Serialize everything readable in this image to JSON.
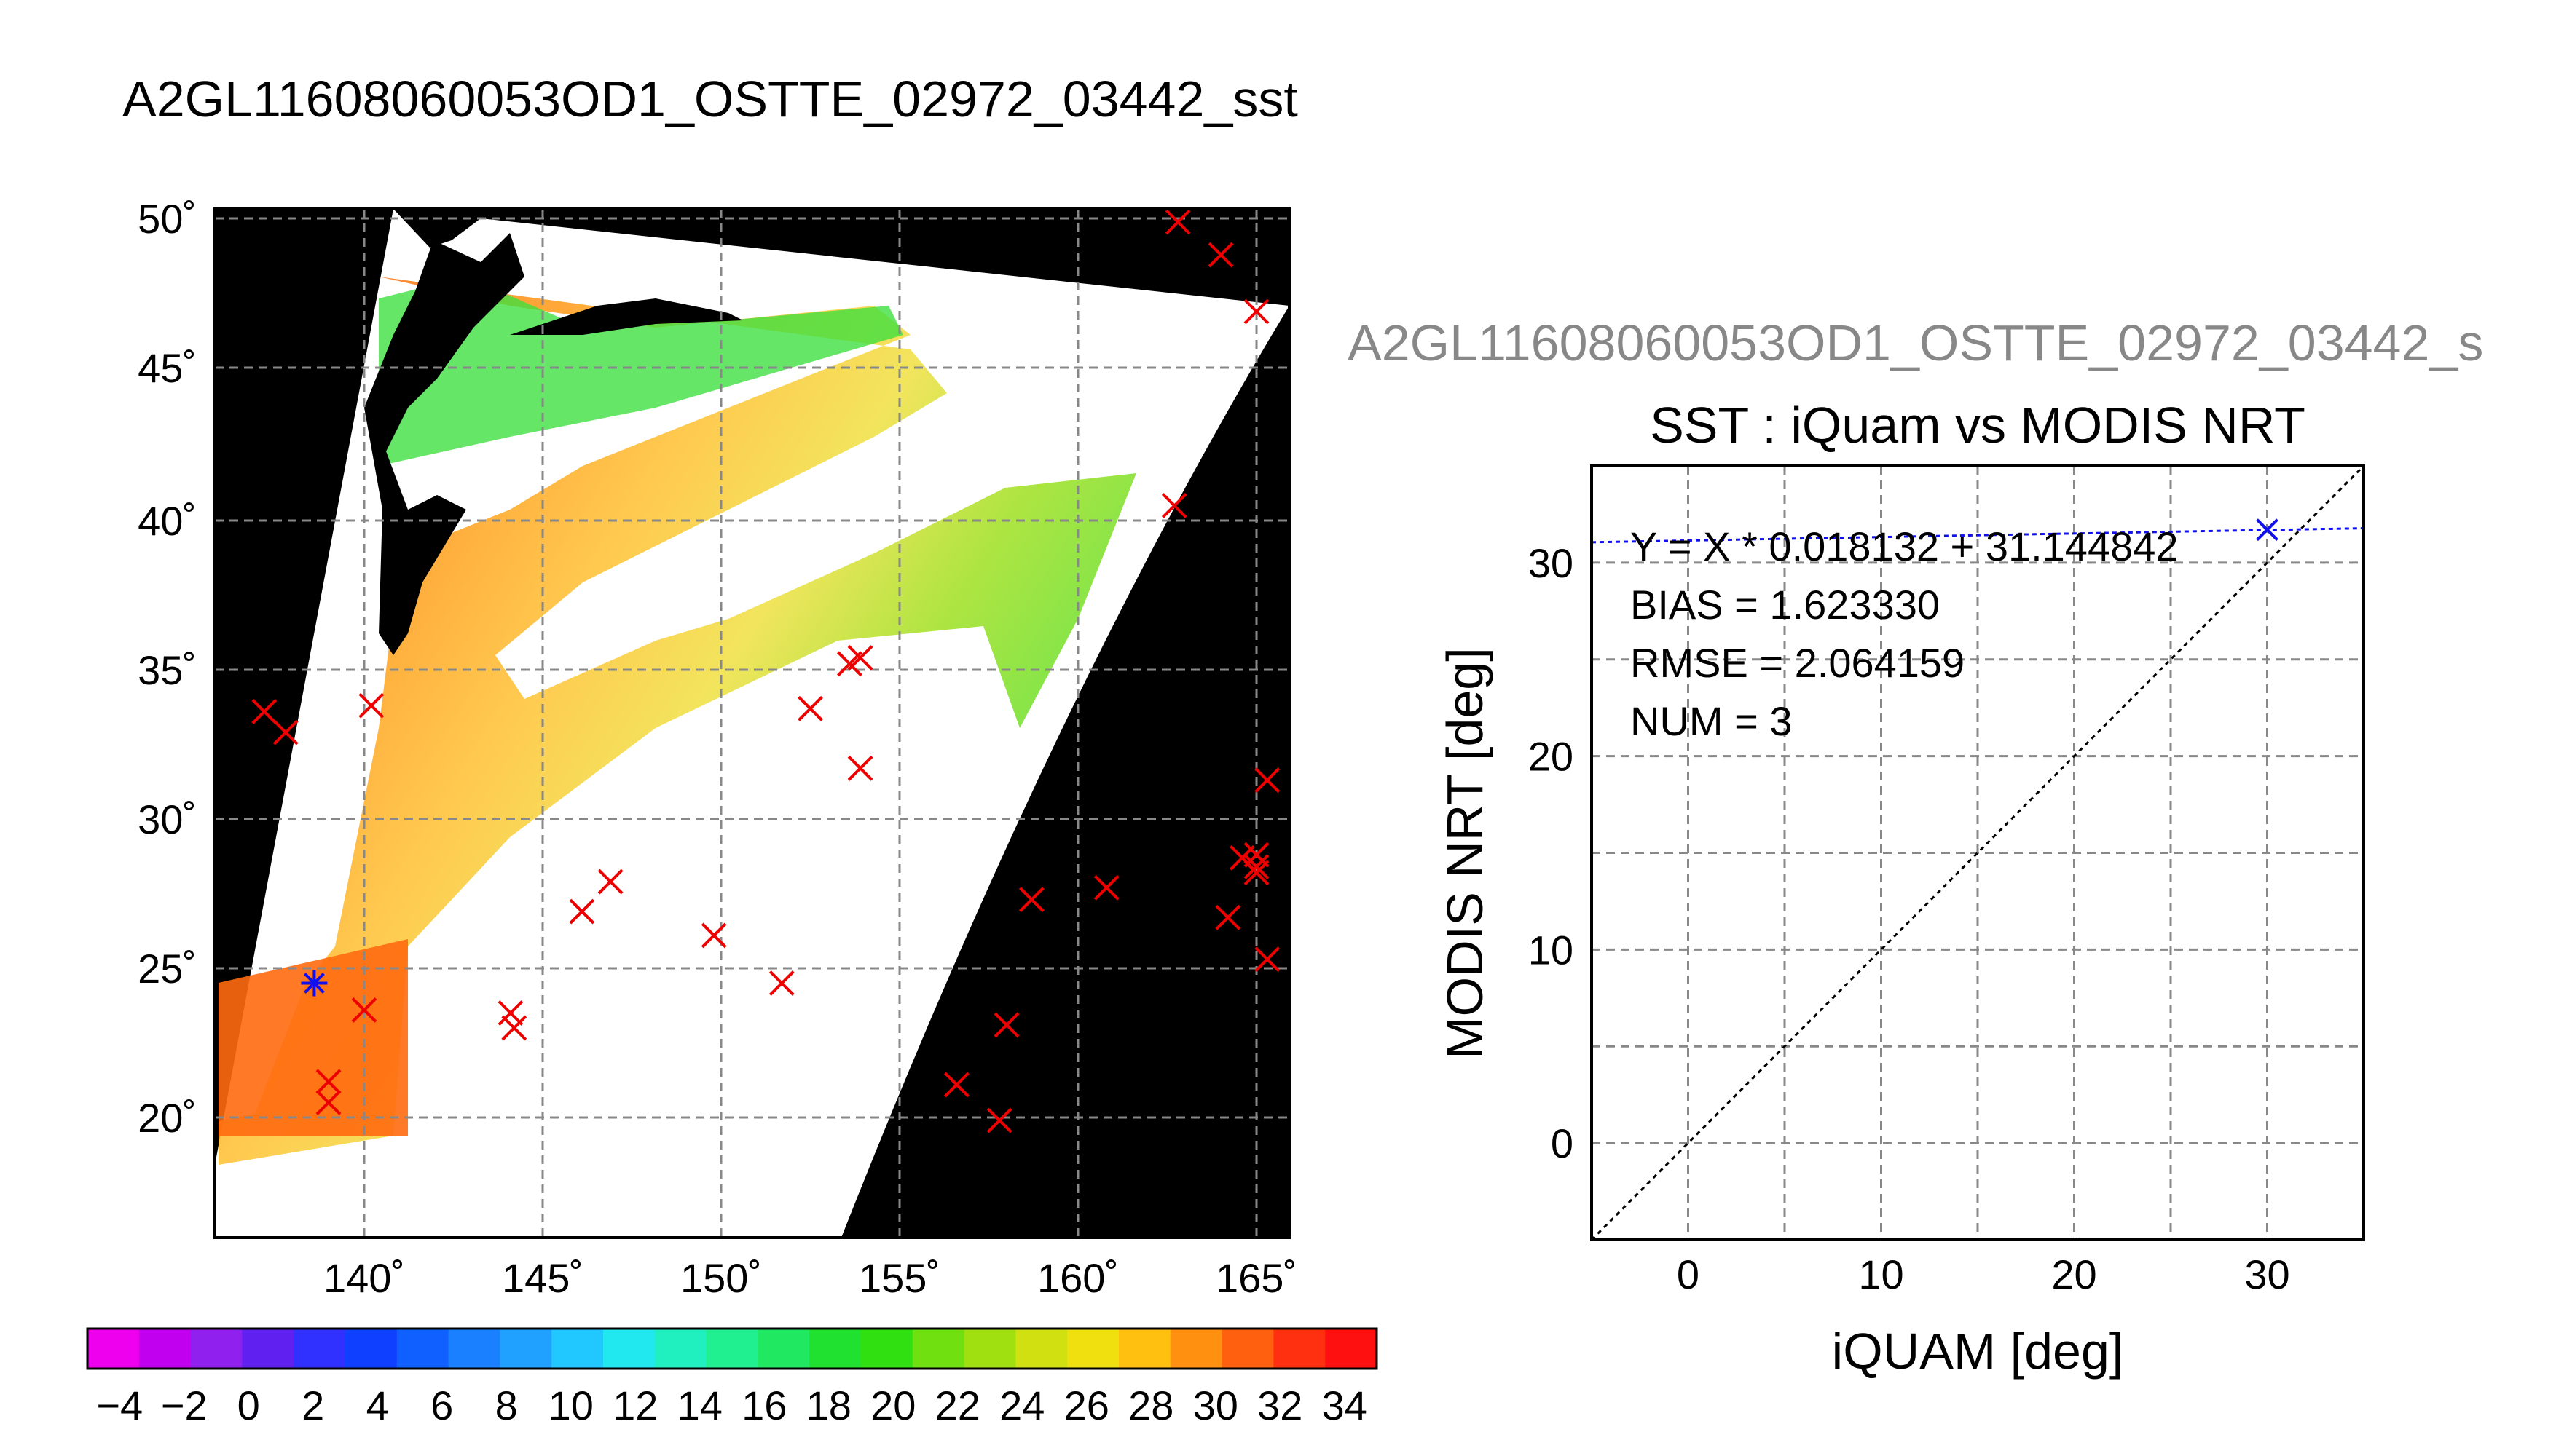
{
  "map": {
    "title": "A2GL11608060053OD1_OSTTE_02972_03442_sst",
    "x_ticks": [
      "140˚",
      "145˚",
      "150˚",
      "155˚",
      "160˚",
      "165˚"
    ],
    "y_ticks": [
      "20˚",
      "25˚",
      "30˚",
      "35˚",
      "40˚",
      "45˚",
      "50˚"
    ],
    "colorbar_ticks": [
      "−4",
      "−2",
      "0",
      "2",
      "4",
      "6",
      "8",
      "10",
      "12",
      "14",
      "16",
      "18",
      "20",
      "22",
      "24",
      "26",
      "28",
      "30",
      "32",
      "34"
    ],
    "colorbar_colors": [
      "#ee00ee",
      "#c000ee",
      "#9020ee",
      "#6020f0",
      "#3030ff",
      "#1040ff",
      "#1060ff",
      "#1a80ff",
      "#20a0ff",
      "#20c8ff",
      "#20e8ee",
      "#20f0c0",
      "#20f090",
      "#20e860",
      "#20e030",
      "#30e010",
      "#70e010",
      "#a0e010",
      "#d0e010",
      "#f0e010",
      "#ffc010",
      "#ff9010",
      "#ff6010",
      "#ff3010",
      "#ff1010"
    ],
    "red_markers": [
      [
        137.2,
        33.6
      ],
      [
        137.8,
        32.9
      ],
      [
        140.2,
        33.8
      ],
      [
        139.0,
        21.2
      ],
      [
        139.0,
        20.5
      ],
      [
        140.0,
        23.6
      ],
      [
        144.1,
        23.5
      ],
      [
        144.2,
        23.0
      ],
      [
        146.1,
        26.9
      ],
      [
        146.9,
        27.9
      ],
      [
        149.8,
        26.1
      ],
      [
        151.7,
        24.5
      ],
      [
        152.5,
        33.7
      ],
      [
        153.6,
        35.2
      ],
      [
        153.9,
        35.4
      ],
      [
        153.9,
        31.7
      ],
      [
        156.6,
        21.1
      ],
      [
        157.8,
        19.9
      ],
      [
        158.0,
        23.1
      ],
      [
        158.7,
        27.3
      ],
      [
        160.8,
        27.7
      ],
      [
        162.7,
        40.5
      ],
      [
        162.8,
        50.0
      ],
      [
        164.0,
        48.9
      ],
      [
        164.2,
        26.7
      ],
      [
        164.6,
        28.7
      ],
      [
        165.0,
        28.8
      ],
      [
        165.0,
        28.4
      ],
      [
        165.0,
        28.2
      ],
      [
        165.3,
        31.3
      ],
      [
        165.3,
        25.3
      ],
      [
        165.0,
        47.0
      ]
    ],
    "blue_markers": [
      [
        138.6,
        24.5
      ]
    ]
  },
  "chart_data": {
    "type": "scatter",
    "header": "A2GL11608060053OD1_OSTTE_02972_03442_s",
    "title": "SST : iQuam vs MODIS NRT",
    "xlabel": "iQUAM [deg]",
    "ylabel": "MODIS NRT [deg]",
    "xlim": [
      -5,
      35
    ],
    "ylim": [
      -5,
      35
    ],
    "x_ticks": [
      "0",
      "10",
      "20",
      "30"
    ],
    "y_ticks": [
      "0",
      "10",
      "20",
      "30"
    ],
    "points": [
      {
        "x": 30.0,
        "y": 31.7
      }
    ],
    "fit_line": {
      "slope": 0.018132,
      "intercept": 31.144842
    },
    "identity_line": true,
    "grid": true,
    "annotations": [
      "Y = X * 0.018132 + 31.144842",
      "BIAS = 1.623330",
      "RMSE = 2.064159",
      "NUM = 3"
    ]
  }
}
